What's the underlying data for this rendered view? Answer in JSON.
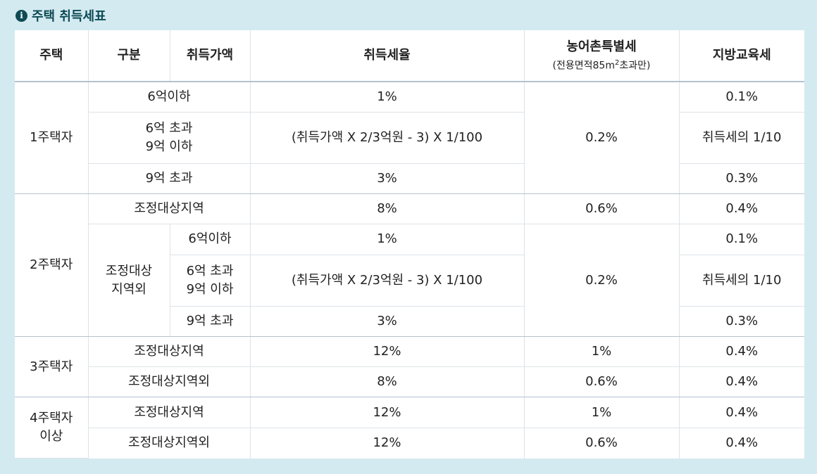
{
  "title": "주택 취득세표",
  "headers": {
    "house": "주택",
    "category": "구분",
    "price": "취득가액",
    "rate": "취득세율",
    "rural": "농어촌특별세",
    "rural_note_pre": "(전용면적85m",
    "rural_note_sup": "2",
    "rural_note_post": "초과만)",
    "edu": "지방교육세"
  },
  "one_house": {
    "label": "1주택자",
    "rows": [
      {
        "price_line1": "6억이하",
        "price_line2": "",
        "rate": "1%",
        "edu": "0.1%"
      },
      {
        "price_line1": "6억 초과",
        "price_line2": "9억 이하",
        "rate": "(취득가액 X 2/3억원 - 3) X 1/100",
        "edu": "취득세의 1/10"
      },
      {
        "price_line1": "9억 초과",
        "price_line2": "",
        "rate": "3%",
        "edu": "0.3%"
      }
    ],
    "rural": "0.2%"
  },
  "two_house": {
    "label": "2주택자",
    "adjusted": {
      "label": "조정대상지역",
      "rate": "8%",
      "rural": "0.6%",
      "edu": "0.4%"
    },
    "non_adjusted_line1": "조정대상",
    "non_adjusted_line2": "지역외",
    "rows": [
      {
        "price_line1": "6억이하",
        "price_line2": "",
        "rate": "1%",
        "edu": "0.1%"
      },
      {
        "price_line1": "6억 초과",
        "price_line2": "9억 이하",
        "rate": "(취득가액 X 2/3억원 - 3) X 1/100",
        "edu": "취득세의 1/10"
      },
      {
        "price_line1": "9억 초과",
        "price_line2": "",
        "rate": "3%",
        "edu": "0.3%"
      }
    ],
    "rural": "0.2%"
  },
  "three_house": {
    "label": "3주택자",
    "rows": [
      {
        "area": "조정대상지역",
        "rate": "12%",
        "rural": "1%",
        "edu": "0.4%"
      },
      {
        "area": "조정대상지역외",
        "rate": "8%",
        "rural": "0.6%",
        "edu": "0.4%"
      }
    ]
  },
  "four_house": {
    "label_line1": "4주택자",
    "label_line2": "이상",
    "rows": [
      {
        "area": "조정대상지역",
        "rate": "12%",
        "rural": "1%",
        "edu": "0.4%"
      },
      {
        "area": "조정대상지역외",
        "rate": "12%",
        "rural": "0.6%",
        "edu": "0.4%"
      }
    ]
  }
}
